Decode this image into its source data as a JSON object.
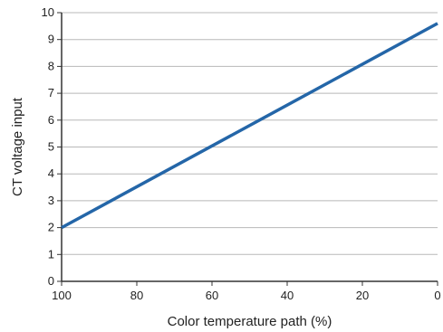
{
  "chart_data": {
    "type": "line",
    "xlabel": "Color temperature path (%)",
    "ylabel": "CT voltage input",
    "xlim": [
      100,
      0
    ],
    "ylim": [
      0,
      10
    ],
    "x_reversed": true,
    "x_ticks": [
      "100",
      "80",
      "60",
      "40",
      "20",
      "0"
    ],
    "y_ticks": [
      "0",
      "1",
      "2",
      "3",
      "4",
      "5",
      "6",
      "7",
      "8",
      "9",
      "10"
    ],
    "grid": "horizontal",
    "series": [
      {
        "x": [
          100,
          0
        ],
        "y": [
          2.0,
          9.6
        ],
        "color": "#2466a8"
      }
    ]
  }
}
